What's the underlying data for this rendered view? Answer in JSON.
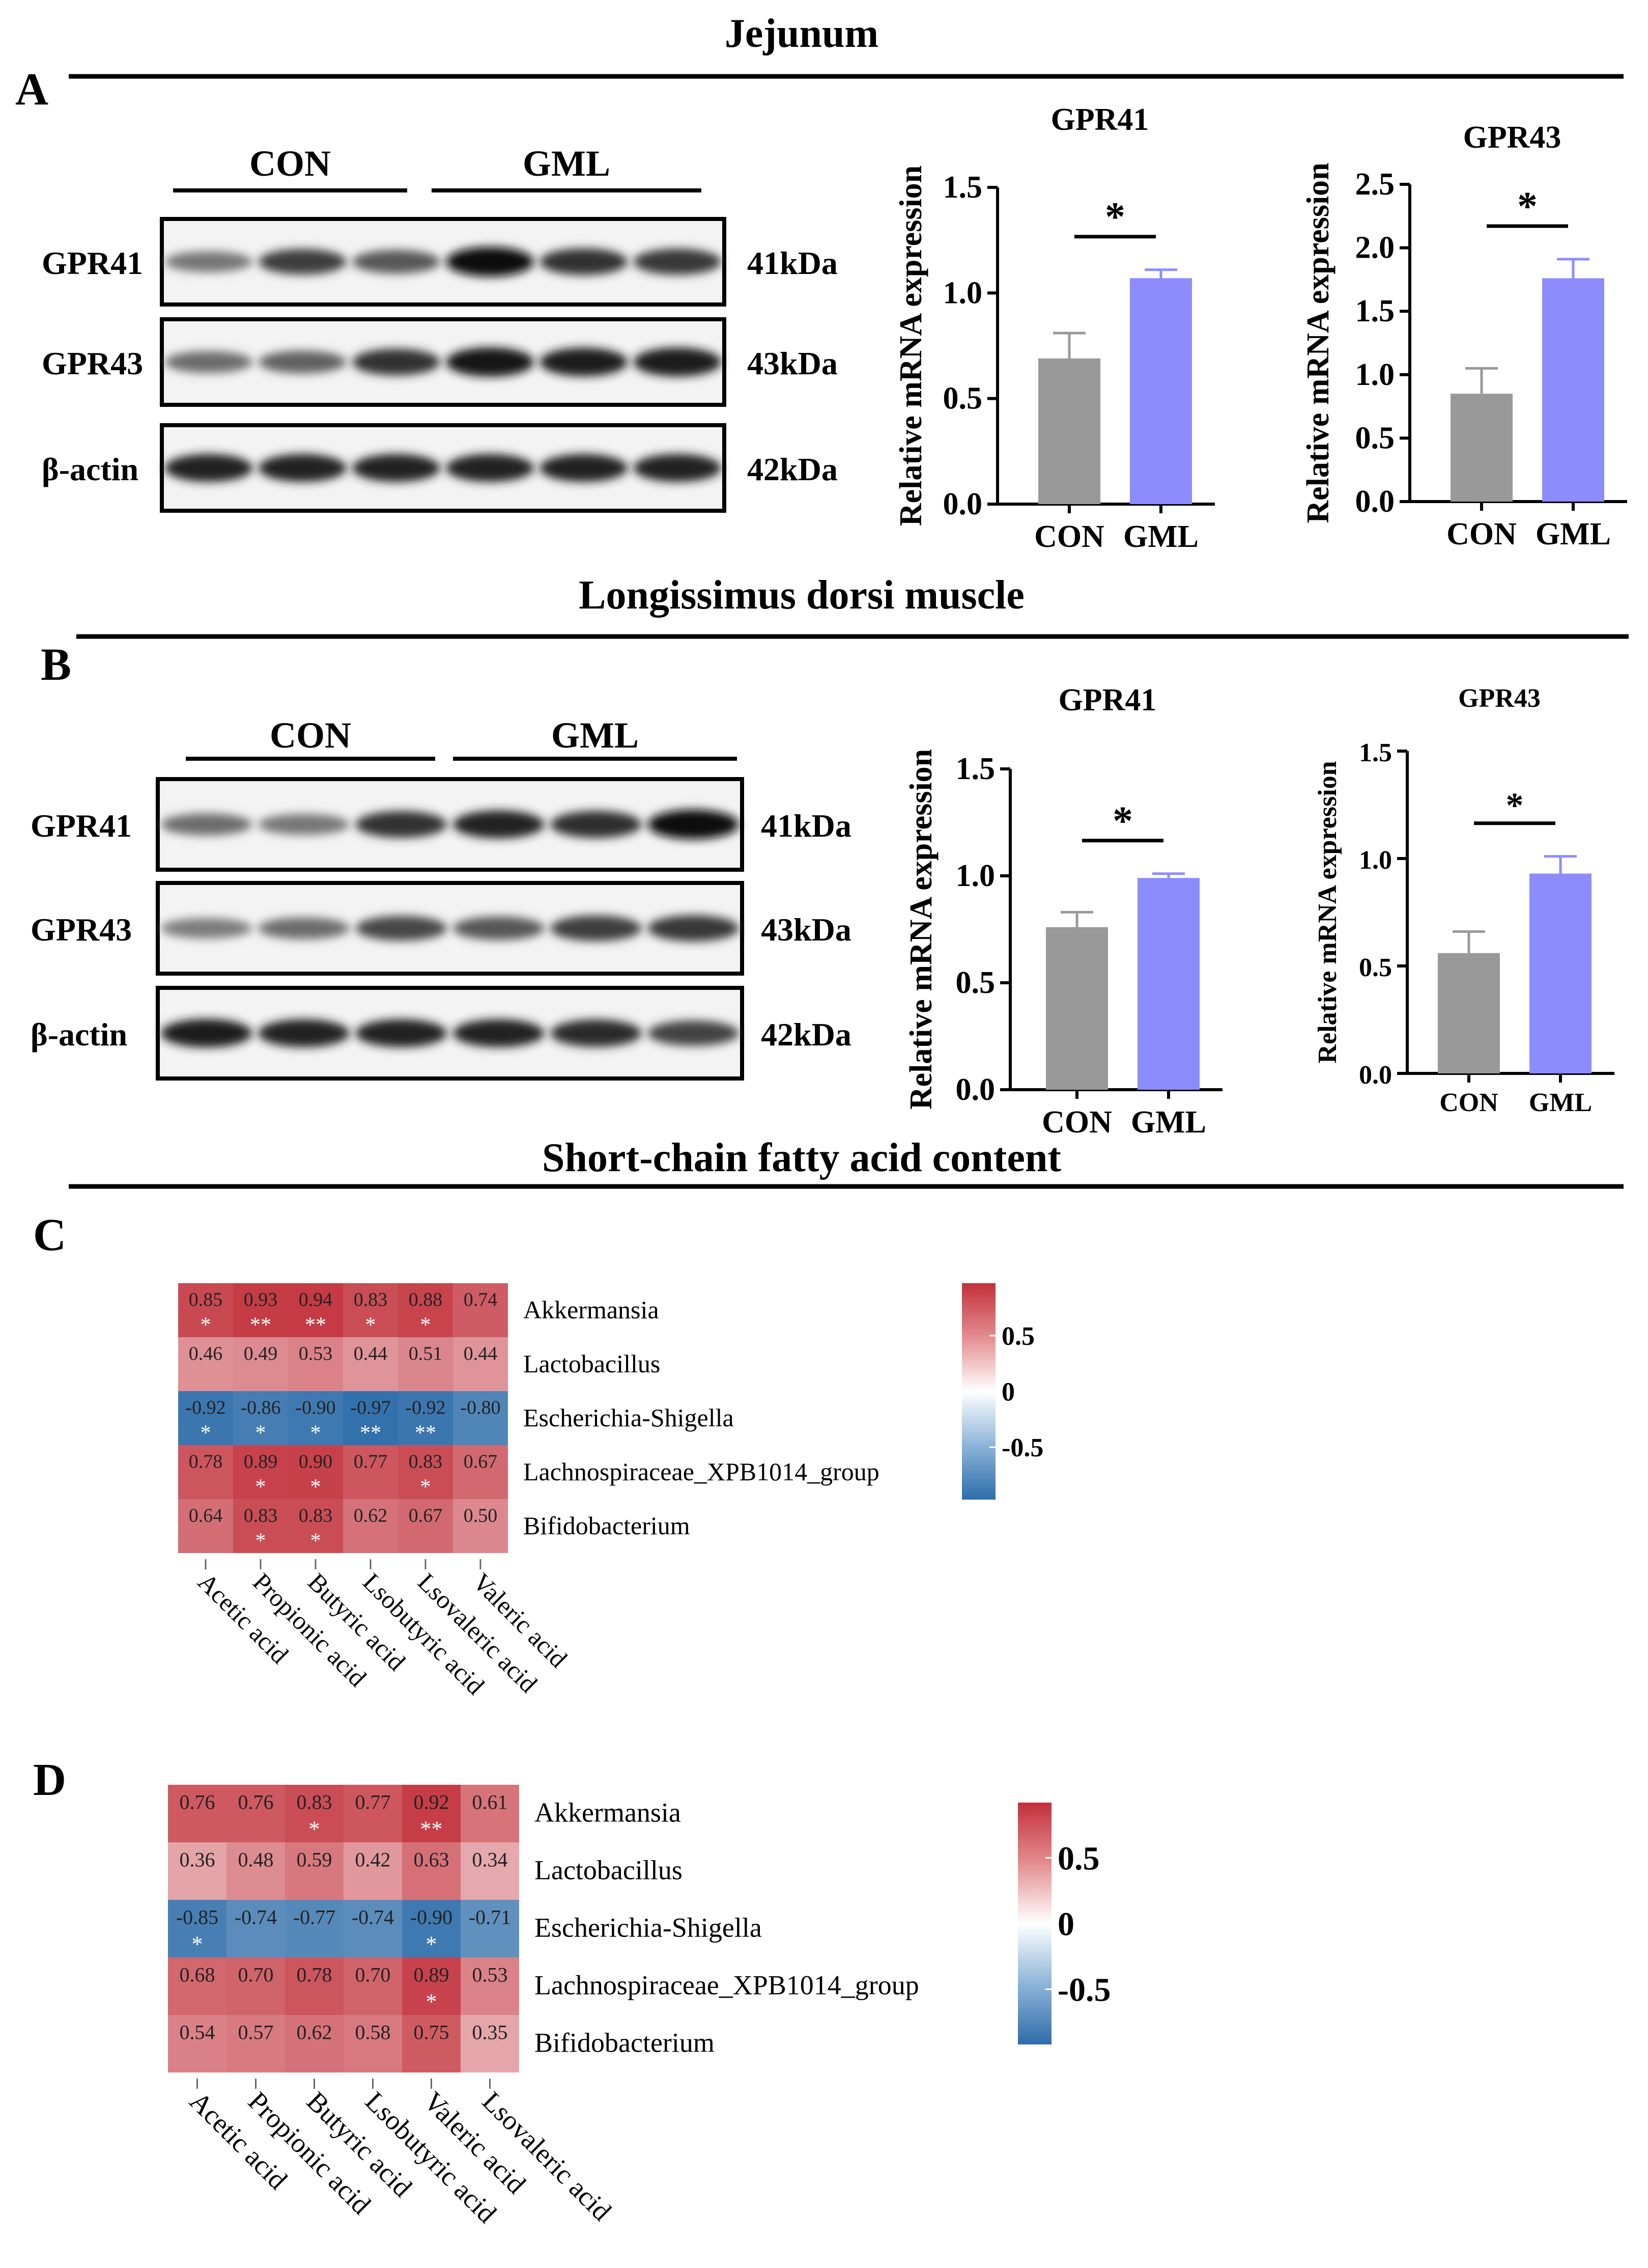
{
  "sections": {
    "a": {
      "title": "Jejunum",
      "letter": "A"
    },
    "b": {
      "title": "Longissimus dorsi muscle",
      "letter": "B"
    },
    "c": {
      "title": "Short-chain fatty acid content",
      "letter": "C"
    },
    "d": {
      "letter": "D"
    }
  },
  "blots": [
    {
      "groups": [
        "CON",
        "GML"
      ],
      "rows": [
        {
          "label": "GPR41",
          "size": "41kDa",
          "intensity": [
            0.45,
            0.72,
            0.6,
            0.95,
            0.78,
            0.75
          ]
        },
        {
          "label": "GPR43",
          "size": "43kDa",
          "intensity": [
            0.5,
            0.55,
            0.78,
            0.92,
            0.88,
            0.9
          ]
        },
        {
          "label": "β-actin",
          "size": "42kDa",
          "intensity": [
            0.85,
            0.85,
            0.85,
            0.85,
            0.85,
            0.85
          ]
        }
      ]
    },
    {
      "groups": [
        "CON",
        "GML"
      ],
      "rows": [
        {
          "label": "GPR41",
          "size": "41kDa",
          "intensity": [
            0.5,
            0.45,
            0.78,
            0.85,
            0.8,
            0.95
          ]
        },
        {
          "label": "GPR43",
          "size": "43kDa",
          "intensity": [
            0.42,
            0.5,
            0.68,
            0.6,
            0.72,
            0.75
          ]
        },
        {
          "label": "β-actin",
          "size": "42kDa",
          "intensity": [
            0.88,
            0.85,
            0.85,
            0.85,
            0.82,
            0.7
          ]
        }
      ]
    }
  ],
  "chart_data": [
    {
      "type": "bar",
      "panel": "A",
      "title": "GPR41",
      "categories": [
        "CON",
        "GML"
      ],
      "values": [
        0.69,
        1.07
      ],
      "errors": [
        0.12,
        0.04
      ],
      "colors": [
        "#999999",
        "#8C8CFF"
      ],
      "ylabel": "Relative mRNA expression",
      "ylim": [
        0,
        1.5
      ],
      "yticks": [
        "0.0",
        "0.5",
        "1.0",
        "1.5"
      ],
      "significance": "*"
    },
    {
      "type": "bar",
      "panel": "A",
      "title": "GPR43",
      "categories": [
        "CON",
        "GML"
      ],
      "values": [
        0.85,
        1.76
      ],
      "errors": [
        0.2,
        0.15
      ],
      "colors": [
        "#999999",
        "#8C8CFF"
      ],
      "ylabel": "Relative mRNA expression",
      "ylim": [
        0,
        2.5
      ],
      "yticks": [
        "0.0",
        "0.5",
        "1.0",
        "1.5",
        "2.0",
        "2.5"
      ],
      "significance": "*"
    },
    {
      "type": "bar",
      "panel": "B",
      "title": "GPR41",
      "categories": [
        "CON",
        "GML"
      ],
      "values": [
        0.76,
        0.99
      ],
      "errors": [
        0.07,
        0.02
      ],
      "colors": [
        "#999999",
        "#8C8CFF"
      ],
      "ylabel": "Relative mRNA expression",
      "ylim": [
        0,
        1.5
      ],
      "yticks": [
        "0.0",
        "0.5",
        "1.0",
        "1.5"
      ],
      "significance": "*"
    },
    {
      "type": "bar",
      "panel": "B",
      "title": "GPR43",
      "categories": [
        "CON",
        "GML"
      ],
      "values": [
        0.56,
        0.93
      ],
      "errors": [
        0.1,
        0.08
      ],
      "colors": [
        "#999999",
        "#8C8CFF"
      ],
      "ylabel": "Relative mRNA expression",
      "ylim": [
        0,
        1.5
      ],
      "yticks": [
        "0.0",
        "0.5",
        "1.0",
        "1.5"
      ],
      "significance": "*"
    },
    {
      "type": "heatmap",
      "panel": "C",
      "rows": [
        "Akkermansia",
        "Lactobacillus",
        "Escherichia-Shigella",
        "Lachnospiraceae_XPB1014_group",
        "Bifidobacterium"
      ],
      "columns": [
        "Acetic acid",
        "Propionic acid",
        "Butyric acid",
        "Lsobutyric acid",
        "Lsovaleric acid",
        "Valeric acid"
      ],
      "values": [
        [
          0.85,
          0.93,
          0.94,
          0.83,
          0.88,
          0.74
        ],
        [
          0.46,
          0.49,
          0.53,
          0.44,
          0.51,
          0.44
        ],
        [
          -0.92,
          -0.86,
          -0.9,
          -0.97,
          -0.92,
          -0.8
        ],
        [
          0.78,
          0.89,
          0.9,
          0.77,
          0.83,
          0.67
        ],
        [
          0.64,
          0.83,
          0.83,
          0.62,
          0.67,
          0.5
        ]
      ],
      "labels": [
        [
          "0.85",
          "0.93",
          "0.94",
          "0.83",
          "0.88",
          "0.74"
        ],
        [
          "0.46",
          "0.49",
          "0.53",
          "0.44",
          "0.51",
          "0.44"
        ],
        [
          "-0.92",
          "-0.86",
          "-0.90",
          "-0.97",
          "-0.92",
          "-0.80"
        ],
        [
          "0.78",
          "0.89",
          "0.90",
          "0.77",
          "0.83",
          "0.67"
        ],
        [
          "0.64",
          "0.83",
          "0.83",
          "0.62",
          "0.67",
          "0.50"
        ]
      ],
      "stars": [
        [
          "*",
          "**",
          "**",
          "*",
          "*",
          ""
        ],
        [
          "",
          "",
          "",
          "",
          "",
          ""
        ],
        [
          "*",
          "*",
          "*",
          "**",
          "**",
          ""
        ],
        [
          "",
          "*",
          "*",
          "",
          "*",
          ""
        ],
        [
          "",
          "*",
          "*",
          "",
          "",
          ""
        ]
      ],
      "colorbar": {
        "ticks": [
          "0.5",
          "0",
          "-0.5"
        ],
        "tick_values": [
          0.5,
          0,
          -0.5
        ],
        "range": [
          -0.97,
          0.97
        ]
      }
    },
    {
      "type": "heatmap",
      "panel": "D",
      "rows": [
        "Akkermansia",
        "Lactobacillus",
        "Escherichia-Shigella",
        "Lachnospiraceae_XPB1014_group",
        "Bifidobacterium"
      ],
      "columns": [
        "Acetic acid",
        "Propionic acid",
        "Butyric acid",
        "Lsobutyric acid",
        "Valeric acid",
        "Lsovaleric acid"
      ],
      "values": [
        [
          0.76,
          0.76,
          0.83,
          0.77,
          0.92,
          0.61
        ],
        [
          0.36,
          0.48,
          0.59,
          0.42,
          0.63,
          0.34
        ],
        [
          -0.85,
          -0.74,
          -0.77,
          -0.74,
          -0.9,
          -0.71
        ],
        [
          0.68,
          0.7,
          0.78,
          0.7,
          0.89,
          0.53
        ],
        [
          0.54,
          0.57,
          0.62,
          0.58,
          0.75,
          0.35
        ]
      ],
      "labels": [
        [
          "0.76",
          "0.76",
          "0.83",
          "0.77",
          "0.92",
          "0.61"
        ],
        [
          "0.36",
          "0.48",
          "0.59",
          "0.42",
          "0.63",
          "0.34"
        ],
        [
          "-0.85",
          "-0.74",
          "-0.77",
          "-0.74",
          "-0.90",
          "-0.71"
        ],
        [
          "0.68",
          "0.70",
          "0.78",
          "0.70",
          "0.89",
          "0.53"
        ],
        [
          "0.54",
          "0.57",
          "0.62",
          "0.58",
          "0.75",
          "0.35"
        ]
      ],
      "stars": [
        [
          "",
          "",
          "*",
          "",
          "**",
          ""
        ],
        [
          "",
          "",
          "",
          "",
          "",
          ""
        ],
        [
          "*",
          "",
          "",
          "",
          "*",
          ""
        ],
        [
          "",
          "",
          "",
          "",
          "*",
          ""
        ],
        [
          "",
          "",
          "",
          "",
          "",
          ""
        ]
      ],
      "colorbar": {
        "ticks": [
          "0.5",
          "0",
          "-0.5"
        ],
        "tick_values": [
          0.5,
          0,
          -0.5
        ],
        "range": [
          -0.92,
          0.92
        ]
      }
    }
  ]
}
